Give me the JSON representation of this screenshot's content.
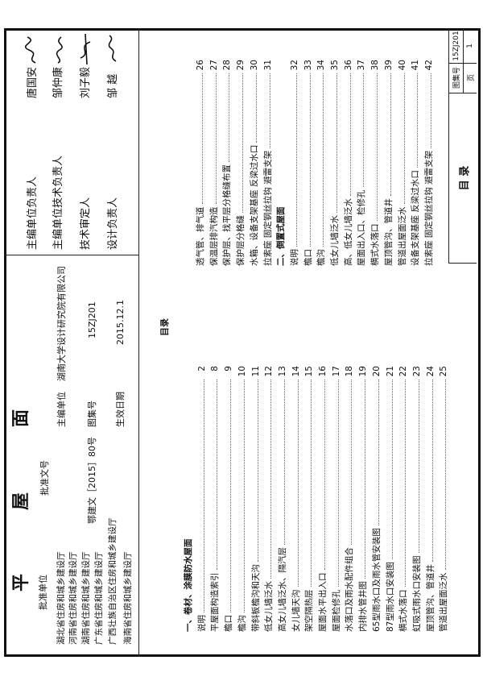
{
  "title": {
    "chars": [
      "平",
      "屋",
      "面"
    ]
  },
  "approval": {
    "unit_label": "批准单位",
    "units": [
      "湖北省住房和城乡建设厅",
      "河南省住房和城乡建设厅",
      "湖南省住房和城乡建设厅",
      "广东省住房和城乡建设厅",
      "广西壮族自治区住房和城乡建设厅",
      "海南省住房和城乡建设厅"
    ],
    "doc_no_label": "批准文号",
    "doc_no": "鄂建文［2015］80号",
    "editor_label": "主编单位",
    "editor": "湖南大学设计研究院有限公司",
    "atlas_label": "图集号",
    "atlas_no": "15ZJ201",
    "date_label": "生效日期",
    "date": "2015.12.1"
  },
  "signatures": [
    {
      "role": "主编单位负责人",
      "name": "唐国安",
      "signature": "唐国安"
    },
    {
      "role": "主编单位技术负责人",
      "name": "邹仲康",
      "signature": "邹仲康"
    },
    {
      "role": "技术审定人",
      "name": "刘子毅",
      "signature": "刘子毅"
    },
    {
      "role": "设计负责人",
      "name": "邹  越",
      "signature": "邹越"
    }
  ],
  "toc_heading": "目录",
  "toc_left": [
    {
      "text": "一、卷材、涂膜防水屋面",
      "page": "",
      "section": true
    },
    {
      "text": "说明",
      "page": "2"
    },
    {
      "text": "平屋面构造索引",
      "page": "8"
    },
    {
      "text": "檐口",
      "page": "9"
    },
    {
      "text": "檐沟",
      "page": "10"
    },
    {
      "text": "带斜板檐沟和天沟",
      "page": "11"
    },
    {
      "text": "低女儿墙泛水",
      "page": "12"
    },
    {
      "text": "高女儿墙泛水、隔汽层",
      "page": "13"
    },
    {
      "text": "女儿墙天沟",
      "page": "14"
    },
    {
      "text": "架空隔热层",
      "page": "15"
    },
    {
      "text": "屋面水平出入口",
      "page": "16"
    },
    {
      "text": "屋面检修孔",
      "page": "17"
    },
    {
      "text": "水落口及雨水配件组合",
      "page": "18"
    },
    {
      "text": "内排水管井图",
      "page": "19"
    },
    {
      "text": "65型雨水口及雨水管安装图",
      "page": "20"
    },
    {
      "text": "87型雨水口安装图",
      "page": "21"
    },
    {
      "text": "横式水落口",
      "page": "22"
    },
    {
      "text": "虹吸式雨水口安装图",
      "page": "23"
    },
    {
      "text": "屋顶管沟、管道井",
      "page": "24"
    },
    {
      "text": "管道出屋面泛水",
      "page": "25"
    }
  ],
  "toc_right": [
    {
      "text": "透气管、排气道",
      "page": "26"
    },
    {
      "text": "保温层排汽构造",
      "page": "27"
    },
    {
      "text": "保护层、找平层分格缝布置",
      "page": "28"
    },
    {
      "text": "保护层分格缝",
      "page": "29"
    },
    {
      "text": "水箱、设备支架基座  反梁过水口",
      "page": "30"
    },
    {
      "text": "拉索座  固定钢丝拉钩  避雷支架",
      "page": "31"
    },
    {
      "text": "二、倒置式屋面",
      "page": "",
      "section": true
    },
    {
      "text": "说明",
      "page": "32"
    },
    {
      "text": "檐口",
      "page": "33"
    },
    {
      "text": "檐沟",
      "page": "34"
    },
    {
      "text": "低女儿墙泛水",
      "page": "35"
    },
    {
      "text": "高、低女儿墙泛水",
      "page": "36"
    },
    {
      "text": "屋面出入口、检修孔",
      "page": "37"
    },
    {
      "text": "横式水落口",
      "page": "38"
    },
    {
      "text": "屋顶管沟、管道井",
      "page": "39"
    },
    {
      "text": "管道出屋面泛水",
      "page": "40"
    },
    {
      "text": "设备支架基座  反梁过水口",
      "page": "41"
    },
    {
      "text": "拉索座  固定钢丝拉钩  避雷支架",
      "page": "42"
    }
  ],
  "title_block": {
    "sheet_title": "目  录",
    "atlas_label": "图集号",
    "atlas_no": "15ZJ201",
    "page_label": "页",
    "page_no": "1"
  }
}
